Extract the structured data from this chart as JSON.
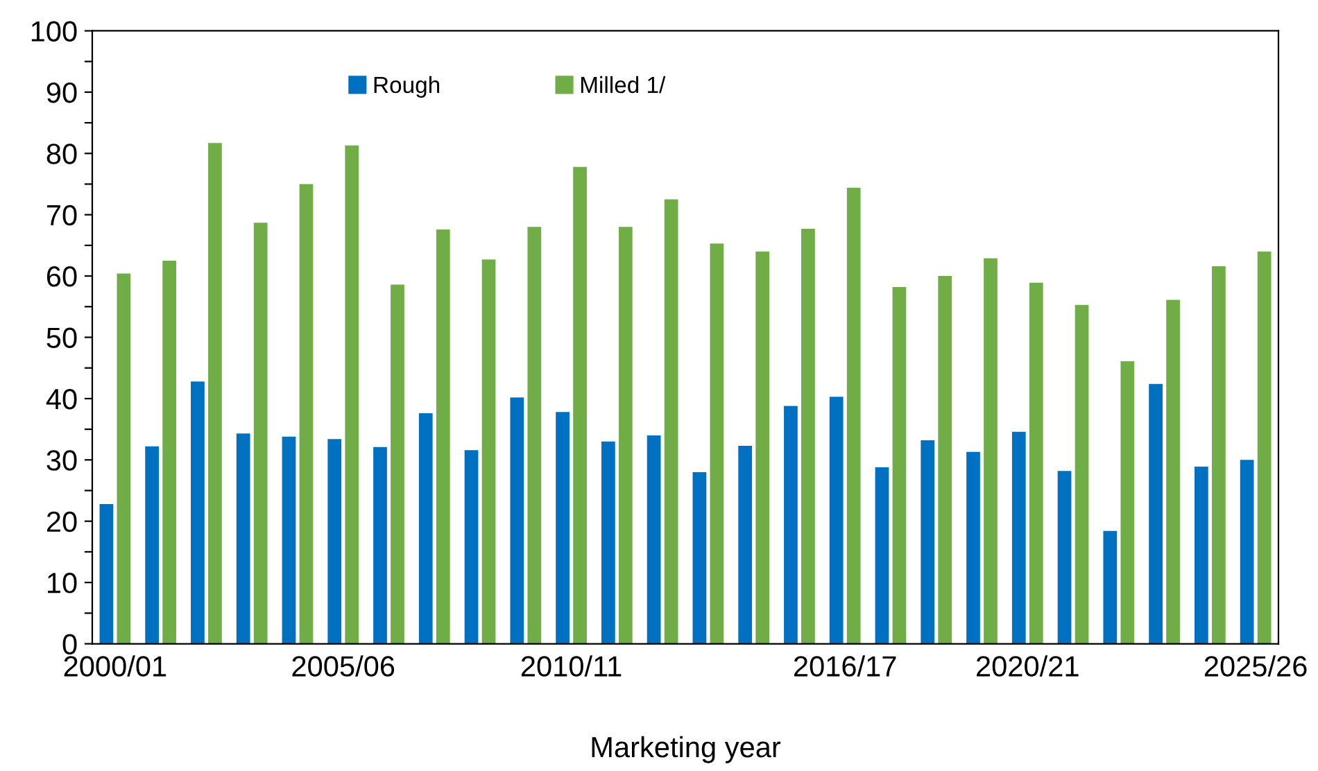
{
  "chart_data": {
    "type": "bar",
    "xlabel": "Marketing year",
    "categories": [
      "2000/01",
      null,
      null,
      null,
      null,
      "2005/06",
      null,
      null,
      null,
      null,
      "2010/11",
      null,
      null,
      null,
      null,
      null,
      "2016/17",
      null,
      null,
      null,
      "2020/21",
      null,
      null,
      null,
      null,
      "2025/26"
    ],
    "series": [
      {
        "name": "Rough",
        "color": "#0070c0",
        "values": [
          22.8,
          32.2,
          42.8,
          34.3,
          33.8,
          33.4,
          32.1,
          37.6,
          31.6,
          40.2,
          37.8,
          33.0,
          34.0,
          28.0,
          32.3,
          38.8,
          40.3,
          28.8,
          33.2,
          31.3,
          34.6,
          28.2,
          18.4,
          42.4,
          28.9,
          30.0
        ]
      },
      {
        "name": "Milled 1/",
        "color": "#70ad47",
        "values": [
          60.4,
          62.5,
          81.7,
          68.7,
          75.0,
          81.3,
          58.6,
          67.6,
          62.7,
          68.0,
          77.8,
          68.0,
          72.5,
          65.3,
          64.0,
          67.7,
          74.4,
          58.2,
          60.0,
          62.9,
          58.9,
          55.3,
          46.1,
          56.1,
          61.6,
          64.0
        ]
      }
    ],
    "ylim": [
      0,
      100
    ],
    "yticks": [
      0,
      {
        "value": 5,
        "label": null
      },
      10,
      {
        "value": 15,
        "label": null
      },
      20,
      {
        "value": 25,
        "label": null
      },
      30,
      {
        "value": 35,
        "label": null
      },
      40,
      {
        "value": 45,
        "label": null
      },
      50,
      {
        "value": 55,
        "label": null
      },
      60,
      {
        "value": 65,
        "label": null
      },
      70,
      {
        "value": 75,
        "label": null
      },
      80,
      {
        "value": 85,
        "label": null
      },
      90,
      {
        "value": 95,
        "label": null
      },
      100
    ],
    "grid": false,
    "legend": "top"
  }
}
